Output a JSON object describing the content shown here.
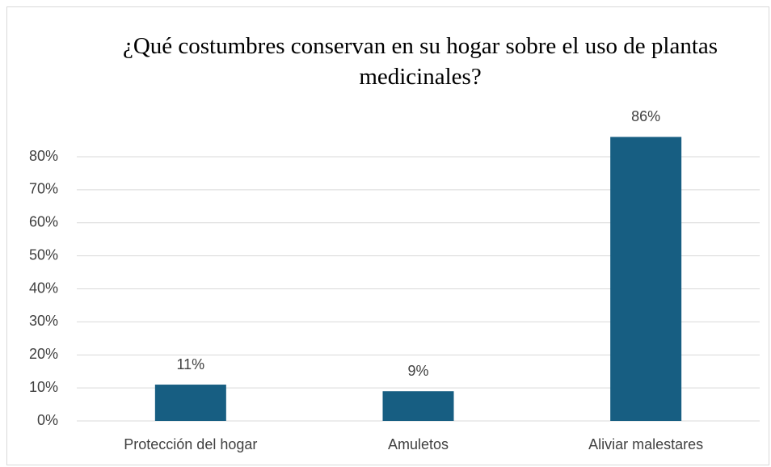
{
  "chart_data": {
    "type": "bar",
    "title": "¿Qué costumbres conservan en su hogar sobre el uso de plantas medicinales?",
    "categories": [
      "Protección del hogar",
      "Amuletos",
      "Aliviar malestares"
    ],
    "values": [
      11,
      9,
      86
    ],
    "value_labels": [
      "11%",
      "9%",
      "86%"
    ],
    "color": "#175e82",
    "ylim": [
      0,
      80
    ],
    "yticks": [
      {
        "value": 0,
        "label": "0%"
      },
      {
        "value": 10,
        "label": "10%"
      },
      {
        "value": 20,
        "label": "20%"
      },
      {
        "value": 30,
        "label": "30%"
      },
      {
        "value": 40,
        "label": "40%"
      },
      {
        "value": 50,
        "label": "50%"
      },
      {
        "value": 60,
        "label": "60%"
      },
      {
        "value": 70,
        "label": "70%"
      },
      {
        "value": 80,
        "label": "80%"
      }
    ],
    "grid": true
  }
}
